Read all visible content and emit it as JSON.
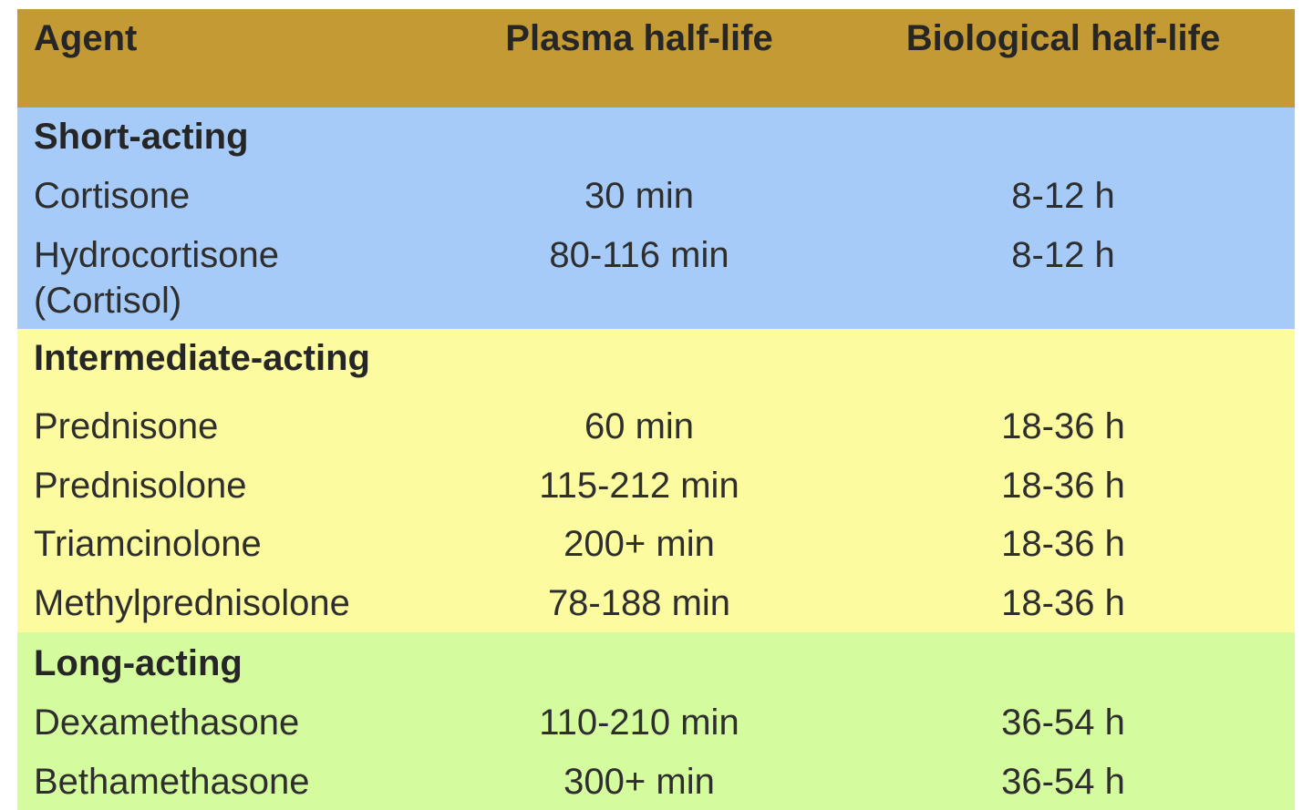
{
  "table": {
    "header": [
      "Agent",
      "Plasma half-life",
      "Biological half-life"
    ],
    "groups": [
      {
        "title": "Short-acting",
        "rows": [
          [
            "Cortisone",
            "30 min",
            "8-12 h"
          ],
          [
            "Hydrocortisone (Cortisol)",
            "80-116 min",
            "8-12 h"
          ]
        ]
      },
      {
        "title": "Intermediate-acting",
        "rows": [
          [
            "Prednisone",
            "60 min",
            "18-36 h"
          ],
          [
            "Prednisolone",
            "115-212 min",
            "18-36 h"
          ],
          [
            "Triamcinolone",
            "200+ min",
            "18-36 h"
          ],
          [
            "Methylprednisolone",
            "78-188 min",
            "18-36 h"
          ]
        ]
      },
      {
        "title": "Long-acting",
        "rows": [
          [
            "Dexamethasone",
            "110-210 min",
            "36-54 h"
          ],
          [
            "Bethamethasone",
            "300+ min",
            "36-54 h"
          ]
        ]
      }
    ]
  }
}
